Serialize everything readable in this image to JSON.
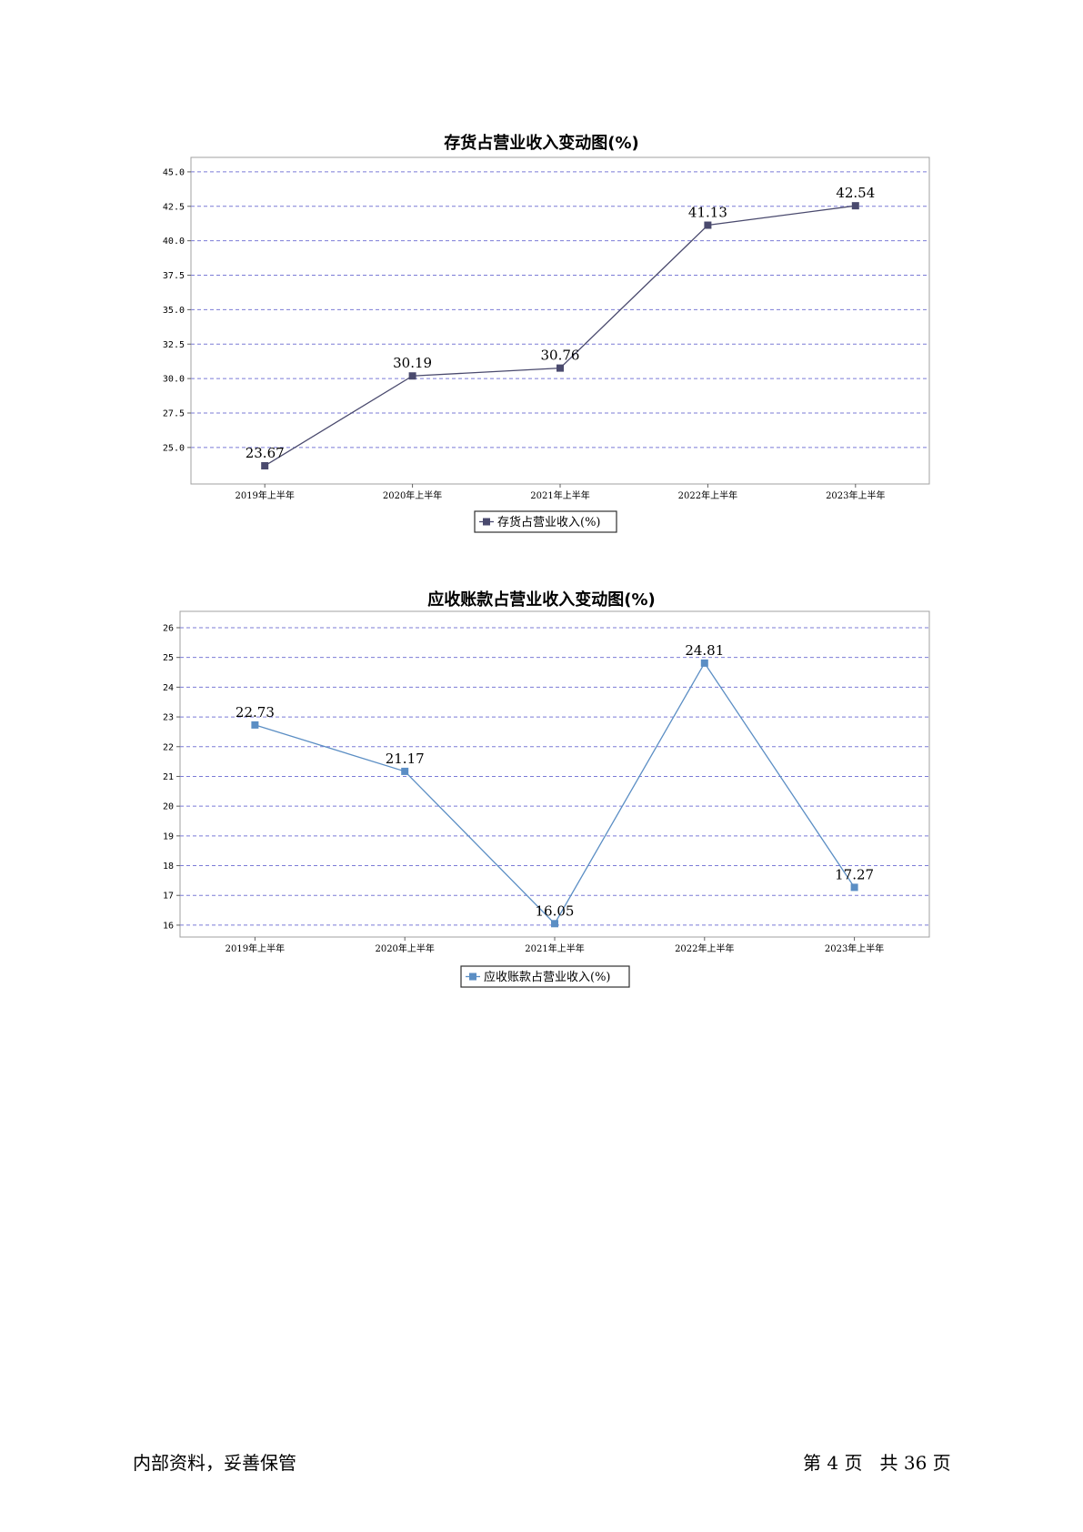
{
  "chart_data": [
    {
      "type": "line",
      "title": "存货占营业收入变动图(%)",
      "categories": [
        "2019年上半年",
        "2020年上半年",
        "2021年上半年",
        "2022年上半年",
        "2023年上半年"
      ],
      "series": [
        {
          "name": "存货占营业收入(%)",
          "values": [
            23.67,
            30.19,
            30.76,
            41.13,
            42.54
          ],
          "labels": [
            "23.67",
            "30.19",
            "30.76",
            "41.13",
            "42.54"
          ],
          "color": "#4a4a6e"
        }
      ],
      "yticks": [
        "25.0",
        "27.5",
        "30.0",
        "32.5",
        "35.0",
        "37.5",
        "40.0",
        "42.5",
        "45.0"
      ],
      "ylim": [
        22.35,
        46.05
      ],
      "grid": true,
      "legend": "bottom-center"
    },
    {
      "type": "line",
      "title": "应收账款占营业收入变动图(%)",
      "categories": [
        "2019年上半年",
        "2020年上半年",
        "2021年上半年",
        "2022年上半年",
        "2023年上半年"
      ],
      "series": [
        {
          "name": "应收账款占营业收入(%)",
          "values": [
            22.73,
            21.17,
            16.05,
            24.81,
            17.27
          ],
          "labels": [
            "22.73",
            "21.17",
            "16.05",
            "24.81",
            "17.27"
          ],
          "color": "#5b8ec4"
        }
      ],
      "yticks": [
        "16",
        "17",
        "18",
        "19",
        "20",
        "21",
        "22",
        "23",
        "24",
        "25",
        "26"
      ],
      "ylim": [
        15.6,
        26.55
      ],
      "grid": true,
      "legend": "bottom-center"
    }
  ],
  "footer": {
    "left": "内部资料，妥善保管",
    "right": "第 4 页   共 36 页"
  }
}
